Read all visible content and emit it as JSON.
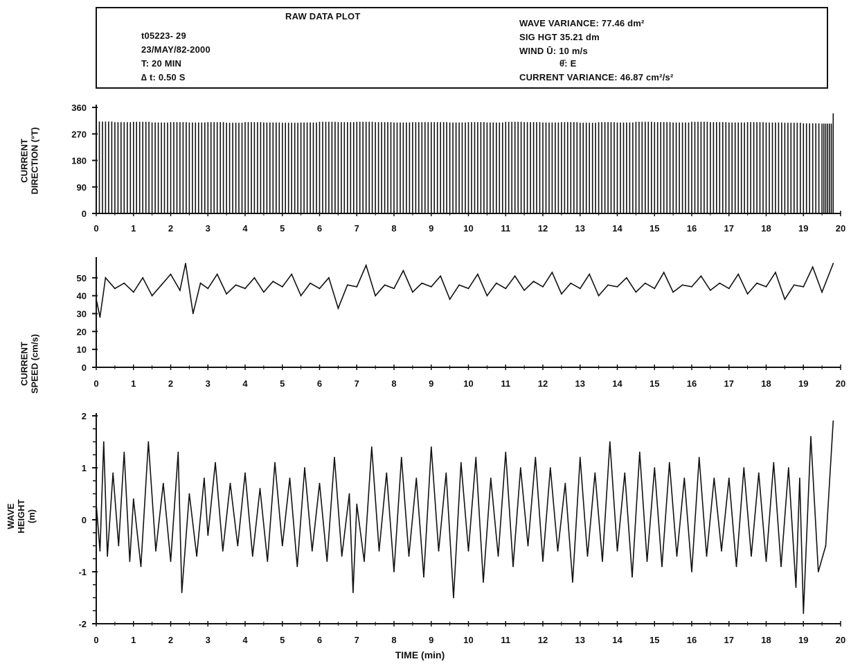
{
  "header": {
    "title": "RAW DATA PLOT",
    "run_id": "t05223- 29",
    "date": "23/MAY/82-2000",
    "duration": "T:  20 MIN",
    "dt": "∆ t:  0.50 S",
    "wave_variance": "WAVE VARIANCE:  77.46 dm²",
    "sig_hgt": "SIG HGT 35.21 dm",
    "wind_speed": "WIND  Ū:  10 m/s",
    "wind_dir": "θ̄:  E",
    "current_variance": "CURRENT VARIANCE: 46.87 cm²/s²"
  },
  "chart_data": [
    {
      "type": "line",
      "id": "current-direction",
      "ylabel": [
        "CURRENT",
        "DIRECTION (°T)"
      ],
      "xlim": [
        0,
        20
      ],
      "ylim": [
        0,
        360
      ],
      "yticks": [
        "0",
        "90",
        "180",
        "270",
        "360"
      ],
      "ytick_values": [
        0,
        90,
        180,
        270,
        360
      ],
      "xticks": [
        "0",
        "1",
        "2",
        "3",
        "4",
        "5",
        "6",
        "7",
        "8",
        "9",
        "10",
        "11",
        "12",
        "13",
        "14",
        "15",
        "16",
        "17",
        "18",
        "19",
        "20"
      ],
      "series": [
        {
          "x": [
            0,
            0.5,
            1,
            1.5,
            2,
            2.5,
            3,
            3.5,
            4,
            4.5,
            5,
            5.5,
            6,
            6.5,
            7,
            7.5,
            8,
            8.5,
            9,
            9.5,
            10,
            10.5,
            11,
            11.5,
            12,
            12.5,
            13,
            13.5,
            14,
            14.5,
            15,
            15.5,
            16,
            16.5,
            17,
            17.5,
            18,
            18.5,
            19,
            19.5,
            19.8
          ],
          "y": [
            312,
            310,
            311,
            309,
            310,
            309,
            310,
            308,
            310,
            309,
            308,
            309,
            311,
            310,
            311,
            310,
            309,
            310,
            310,
            309,
            310,
            309,
            311,
            310,
            309,
            310,
            308,
            310,
            309,
            311,
            310,
            309,
            311,
            310,
            309,
            310,
            309,
            308,
            306,
            305,
            340
          ]
        }
      ]
    },
    {
      "type": "line",
      "id": "current-speed",
      "ylabel": [
        "CURRENT",
        "SPEED (cm/s)"
      ],
      "xlim": [
        0,
        20
      ],
      "ylim": [
        0,
        60
      ],
      "yticks": [
        "0",
        "10",
        "20",
        "30",
        "40",
        "50"
      ],
      "ytick_values": [
        0,
        10,
        20,
        30,
        40,
        50
      ],
      "xticks": [
        "0",
        "1",
        "2",
        "3",
        "4",
        "5",
        "6",
        "7",
        "8",
        "9",
        "10",
        "11",
        "12",
        "13",
        "14",
        "15",
        "16",
        "17",
        "18",
        "19",
        "20"
      ],
      "series": [
        {
          "x": [
            0,
            0.1,
            0.25,
            0.5,
            0.75,
            1,
            1.25,
            1.5,
            1.75,
            2,
            2.25,
            2.4,
            2.6,
            2.8,
            3,
            3.25,
            3.5,
            3.75,
            4,
            4.25,
            4.5,
            4.75,
            5,
            5.25,
            5.5,
            5.75,
            6,
            6.25,
            6.5,
            6.75,
            7,
            7.25,
            7.5,
            7.75,
            8,
            8.25,
            8.5,
            8.75,
            9,
            9.25,
            9.5,
            9.75,
            10,
            10.25,
            10.5,
            10.75,
            11,
            11.25,
            11.5,
            11.75,
            12,
            12.25,
            12.5,
            12.75,
            13,
            13.25,
            13.5,
            13.75,
            14,
            14.25,
            14.5,
            14.75,
            15,
            15.25,
            15.5,
            15.75,
            16,
            16.25,
            16.5,
            16.75,
            17,
            17.25,
            17.5,
            17.75,
            18,
            18.25,
            18.5,
            18.75,
            19,
            19.25,
            19.5,
            19.8
          ],
          "y": [
            38,
            28,
            50,
            44,
            47,
            42,
            50,
            40,
            46,
            52,
            43,
            58,
            30,
            47,
            44,
            52,
            41,
            46,
            44,
            50,
            42,
            48,
            45,
            52,
            40,
            47,
            44,
            50,
            33,
            46,
            45,
            57,
            40,
            46,
            44,
            54,
            42,
            47,
            45,
            51,
            38,
            46,
            44,
            52,
            40,
            47,
            44,
            51,
            43,
            48,
            45,
            53,
            41,
            47,
            44,
            52,
            40,
            46,
            45,
            50,
            42,
            47,
            44,
            53,
            42,
            46,
            45,
            51,
            43,
            47,
            44,
            52,
            41,
            47,
            45,
            53,
            38,
            46,
            45,
            56,
            42,
            58
          ]
        }
      ]
    },
    {
      "type": "line",
      "id": "wave-height",
      "ylabel": [
        "WAVE",
        "HEIGHT",
        "(m)"
      ],
      "xlabel": "TIME (min)",
      "xlim": [
        0,
        20
      ],
      "ylim": [
        -2,
        2
      ],
      "yticks": [
        "-2",
        "-1",
        "0",
        "1",
        "2"
      ],
      "ytick_values": [
        -2,
        -1,
        0,
        1,
        2
      ],
      "xticks": [
        "0",
        "1",
        "2",
        "3",
        "4",
        "5",
        "6",
        "7",
        "8",
        "9",
        "10",
        "11",
        "12",
        "13",
        "14",
        "15",
        "16",
        "17",
        "18",
        "19",
        "20"
      ],
      "series": [
        {
          "x": [
            0,
            0.1,
            0.2,
            0.3,
            0.45,
            0.6,
            0.75,
            0.9,
            1,
            1.2,
            1.4,
            1.6,
            1.8,
            2,
            2.2,
            2.3,
            2.5,
            2.7,
            2.9,
            3,
            3.2,
            3.4,
            3.6,
            3.8,
            4,
            4.2,
            4.4,
            4.6,
            4.8,
            5,
            5.2,
            5.4,
            5.6,
            5.8,
            6,
            6.2,
            6.4,
            6.6,
            6.8,
            6.9,
            7,
            7.2,
            7.4,
            7.6,
            7.8,
            8,
            8.2,
            8.4,
            8.6,
            8.8,
            9,
            9.2,
            9.4,
            9.6,
            9.8,
            10,
            10.2,
            10.4,
            10.6,
            10.8,
            11,
            11.2,
            11.4,
            11.6,
            11.8,
            12,
            12.2,
            12.4,
            12.6,
            12.8,
            13,
            13.2,
            13.4,
            13.6,
            13.8,
            14,
            14.2,
            14.4,
            14.6,
            14.8,
            15,
            15.2,
            15.4,
            15.6,
            15.8,
            16,
            16.2,
            16.4,
            16.6,
            16.8,
            17,
            17.2,
            17.4,
            17.6,
            17.8,
            18,
            18.2,
            18.4,
            18.6,
            18.8,
            18.9,
            19,
            19.2,
            19.4,
            19.6,
            19.8
          ],
          "y": [
            0.3,
            -0.6,
            1.5,
            -0.7,
            0.9,
            -0.5,
            1.3,
            -0.8,
            0.4,
            -0.9,
            1.5,
            -0.6,
            0.7,
            -0.8,
            1.3,
            -1.4,
            0.5,
            -0.7,
            0.8,
            -0.3,
            1.1,
            -0.6,
            0.7,
            -0.5,
            0.9,
            -0.7,
            0.6,
            -0.8,
            1.1,
            -0.5,
            0.8,
            -0.9,
            1.0,
            -0.6,
            0.7,
            -0.8,
            1.2,
            -0.7,
            0.5,
            -1.4,
            0.3,
            -0.8,
            1.4,
            -0.6,
            0.9,
            -1.0,
            1.2,
            -0.7,
            0.8,
            -1.1,
            1.4,
            -0.6,
            0.9,
            -1.5,
            1.1,
            -0.6,
            1.2,
            -1.2,
            0.8,
            -0.7,
            1.3,
            -0.9,
            1.0,
            -0.5,
            1.2,
            -0.8,
            1.0,
            -0.6,
            0.7,
            -1.2,
            1.2,
            -0.7,
            0.9,
            -0.8,
            1.5,
            -0.6,
            0.9,
            -1.1,
            1.3,
            -0.8,
            1.0,
            -0.9,
            1.1,
            -0.7,
            0.8,
            -1.0,
            1.2,
            -0.7,
            0.8,
            -0.6,
            0.8,
            -0.9,
            1.0,
            -0.7,
            0.9,
            -0.8,
            1.1,
            -0.9,
            1.0,
            -1.3,
            0.8,
            -1.8,
            1.6,
            -1.0,
            -0.5,
            1.9
          ]
        }
      ]
    }
  ]
}
